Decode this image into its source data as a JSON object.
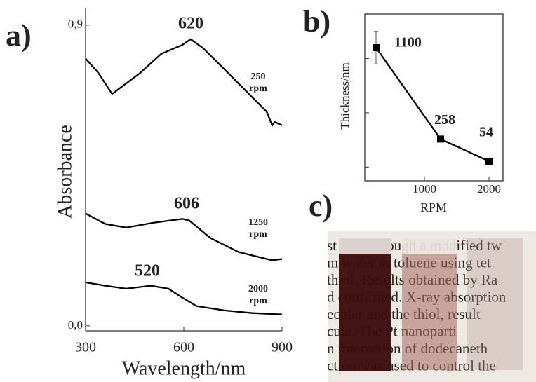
{
  "chart_data": [
    {
      "type": "line",
      "panel_label": "a)",
      "xlabel": "Wavelength/nm",
      "ylabel": "Absorbance",
      "xlim": [
        300,
        900
      ],
      "xticks": [
        300,
        600,
        900
      ],
      "ylim": [
        -0.015,
        0.95
      ],
      "yticks": [
        {
          "value": 0,
          "label": "0,0"
        },
        {
          "value": 0.9,
          "label": "0,9"
        }
      ],
      "series": [
        {
          "label_lines": [
            "250",
            "rpm"
          ],
          "annotation": "620",
          "color": "#000",
          "x": [
            300,
            339,
            381,
            467,
            531,
            596,
            621,
            659,
            724,
            789,
            853,
            870,
            878,
            900
          ],
          "values": [
            0.8,
            0.757,
            0.694,
            0.757,
            0.814,
            0.841,
            0.858,
            0.831,
            0.768,
            0.704,
            0.641,
            0.6,
            0.61,
            0.6
          ]
        },
        {
          "label_lines": [
            "1250",
            "rpm"
          ],
          "annotation": "606",
          "color": "#000",
          "x": [
            300,
            360,
            424,
            510,
            596,
            617,
            681,
            767,
            853,
            870,
            900
          ],
          "values": [
            0.336,
            0.305,
            0.294,
            0.309,
            0.32,
            0.315,
            0.263,
            0.221,
            0.2,
            0.196,
            0.2
          ]
        },
        {
          "label_lines": [
            "2000",
            "rpm"
          ],
          "annotation": "520",
          "color": "#000",
          "x": [
            300,
            360,
            424,
            499,
            553,
            596,
            639,
            724,
            810,
            900
          ],
          "values": [
            0.13,
            0.12,
            0.111,
            0.12,
            0.111,
            0.084,
            0.059,
            0.046,
            0.038,
            0.034
          ]
        }
      ]
    },
    {
      "type": "line",
      "panel_label": "b)",
      "xlabel": "RPM",
      "ylabel": "Thickness/nm",
      "xlim": [
        76,
        2217
      ],
      "xticks": [
        1000,
        2000
      ],
      "ylim": [
        -127,
        1410
      ],
      "yticks": [
        0,
        500,
        1000
      ],
      "x": [
        250,
        1250,
        2000
      ],
      "values": [
        1100,
        258,
        54
      ],
      "errors": [
        150,
        null,
        null
      ],
      "color": "#000"
    }
  ],
  "photo": {
    "panel_label": "c)",
    "text_lines": [
      "st time through a modified tw",
      "m water to toluene using tet",
      "thiol. Results obtained by Ra",
      "d confirmed. X-ray absorption",
      "ecular and the thiol, result",
      "cule. The Pt nanoparti",
      "n interaction of dodecaneth",
      "ction was used to control the"
    ]
  }
}
